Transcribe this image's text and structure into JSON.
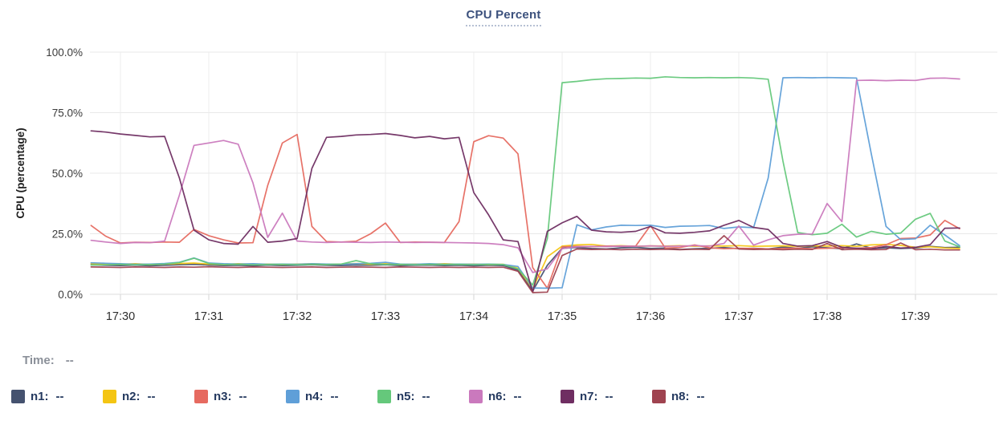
{
  "title": "CPU Percent",
  "time_row": {
    "label": "Time:",
    "value": "--"
  },
  "legend": {
    "items": [
      {
        "label": "n1:",
        "value": "--",
        "color": "#45526f"
      },
      {
        "label": "n2:",
        "value": "--",
        "color": "#f4c513"
      },
      {
        "label": "n3:",
        "value": "--",
        "color": "#e66a60"
      },
      {
        "label": "n4:",
        "value": "--",
        "color": "#5f9fd8"
      },
      {
        "label": "n5:",
        "value": "--",
        "color": "#65c87b"
      },
      {
        "label": "n6:",
        "value": "--",
        "color": "#ca79bd"
      },
      {
        "label": "n7:",
        "value": "--",
        "color": "#6f2e62"
      },
      {
        "label": "n8:",
        "value": "--",
        "color": "#9f4350"
      }
    ]
  },
  "chart_data": {
    "type": "line",
    "title": "CPU Percent",
    "xlabel": "",
    "ylabel": "CPU (percentage)",
    "ylim": [
      0,
      100
    ],
    "grid": true,
    "legend_position": "bottom",
    "y_ticks": [
      0,
      25,
      50,
      75,
      100
    ],
    "y_tick_labels": [
      "0.0%",
      "25.0%",
      "50.0%",
      "75.0%",
      "100.0%"
    ],
    "x_tick_labels": [
      "17:30",
      "17:31",
      "17:32",
      "17:33",
      "17:34",
      "17:35",
      "17:36",
      "17:37",
      "17:38",
      "17:39"
    ],
    "x_minutes_after_17_30": [
      -0.333,
      -0.167,
      0,
      0.167,
      0.333,
      0.5,
      0.667,
      0.833,
      1,
      1.167,
      1.333,
      1.5,
      1.667,
      1.833,
      2,
      2.167,
      2.333,
      2.5,
      2.667,
      2.833,
      3,
      3.167,
      3.333,
      3.5,
      3.667,
      3.833,
      4,
      4.167,
      4.333,
      4.5,
      4.667,
      4.833,
      5,
      5.167,
      5.333,
      5.5,
      5.667,
      5.833,
      6,
      6.167,
      6.333,
      6.5,
      6.667,
      6.833,
      7,
      7.167,
      7.333,
      7.5,
      7.667,
      7.833,
      8,
      8.167,
      8.333,
      8.5,
      8.667,
      8.833,
      9,
      9.167,
      9.333,
      9.5
    ],
    "series": [
      {
        "name": "n1",
        "color": "#45526f",
        "values": [
          12.2,
          12.0,
          11.9,
          12.1,
          11.8,
          12.0,
          12.2,
          12.4,
          12.1,
          11.9,
          12.0,
          11.8,
          12.1,
          11.9,
          12.0,
          12.2,
          12.0,
          11.9,
          12.1,
          12.0,
          12.2,
          11.9,
          12.0,
          12.1,
          11.9,
          12.0,
          11.8,
          12.0,
          11.9,
          10.0,
          1.4,
          12.0,
          19.0,
          19.3,
          18.9,
          18.7,
          19.2,
          19.4,
          18.9,
          19.1,
          18.5,
          18.8,
          19.0,
          19.3,
          18.8,
          19.0,
          18.7,
          19.5,
          19.0,
          19.6,
          19.2,
          18.8,
          20.8,
          19.0,
          19.2,
          18.9,
          19.1,
          19.8,
          19.3,
          19.4
        ]
      },
      {
        "name": "n2",
        "color": "#f4c513",
        "values": [
          12.7,
          12.5,
          12.4,
          12.6,
          12.3,
          12.5,
          12.7,
          12.9,
          12.5,
          12.3,
          12.6,
          12.4,
          12.5,
          12.3,
          12.5,
          12.6,
          12.4,
          12.5,
          12.7,
          12.4,
          12.6,
          12.3,
          12.5,
          12.4,
          12.6,
          12.4,
          12.5,
          12.3,
          12.4,
          10.8,
          2.3,
          15.5,
          19.9,
          20.4,
          20.6,
          19.9,
          20.1,
          19.8,
          20.0,
          19.9,
          20.1,
          19.8,
          20.0,
          19.9,
          20.1,
          19.8,
          19.9,
          20.0,
          19.8,
          20.0,
          19.9,
          20.1,
          19.8,
          20.4,
          20.6,
          20.2,
          19.4,
          19.6,
          19.1,
          18.9
        ]
      },
      {
        "name": "n3",
        "color": "#e66a60",
        "values": [
          28.4,
          24.0,
          21.2,
          21.5,
          21.4,
          21.6,
          21.5,
          26.8,
          24.2,
          22.5,
          21.2,
          21.3,
          45.0,
          62.5,
          66.0,
          28.0,
          21.8,
          21.6,
          21.9,
          25.0,
          29.4,
          21.4,
          21.6,
          21.5,
          21.4,
          30.0,
          63.0,
          65.5,
          64.5,
          58.0,
          11.0,
          2.5,
          19.6,
          19.8,
          19.7,
          19.9,
          19.8,
          19.9,
          28.4,
          19.1,
          19.3,
          20.4,
          19.2,
          18.8,
          19.0,
          18.9,
          18.7,
          18.9,
          19.1,
          18.8,
          19.0,
          19.2,
          19.0,
          19.3,
          20.5,
          23.0,
          23.2,
          24.5,
          30.5,
          27.1
        ]
      },
      {
        "name": "n4",
        "color": "#5f9fd8",
        "values": [
          13.0,
          12.8,
          12.6,
          12.4,
          12.5,
          12.7,
          13.2,
          15.0,
          12.9,
          12.6,
          12.5,
          12.6,
          12.4,
          12.5,
          12.4,
          12.6,
          12.5,
          12.4,
          12.6,
          12.8,
          13.2,
          12.5,
          12.4,
          12.6,
          12.4,
          12.5,
          12.4,
          12.5,
          12.3,
          11.5,
          2.6,
          2.5,
          2.7,
          28.7,
          26.6,
          27.8,
          28.5,
          28.4,
          28.5,
          27.6,
          28.1,
          28.2,
          28.4,
          27.2,
          27.8,
          27.5,
          48.0,
          89.4,
          89.5,
          89.4,
          89.5,
          89.4,
          89.3,
          58.0,
          28.0,
          22.6,
          22.9,
          28.5,
          24.5,
          20.1
        ]
      },
      {
        "name": "n5",
        "color": "#65c87b",
        "values": [
          12.1,
          12.2,
          12.4,
          12.2,
          12.3,
          12.5,
          13.1,
          14.9,
          12.7,
          12.3,
          12.4,
          12.2,
          12.3,
          12.4,
          12.2,
          12.4,
          12.3,
          12.5,
          13.9,
          12.6,
          12.3,
          12.4,
          12.2,
          12.4,
          12.3,
          12.4,
          12.2,
          12.4,
          12.3,
          10.5,
          3.8,
          23.0,
          87.4,
          87.9,
          88.6,
          89.0,
          89.1,
          89.3,
          89.2,
          89.8,
          89.5,
          89.4,
          89.5,
          89.4,
          89.5,
          89.3,
          88.8,
          55.0,
          25.5,
          24.6,
          25.2,
          28.9,
          23.6,
          26.0,
          24.8,
          25.3,
          31.0,
          33.4,
          22.0,
          19.6
        ]
      },
      {
        "name": "n6",
        "color": "#ca79bd",
        "values": [
          22.3,
          21.6,
          21.0,
          21.4,
          21.3,
          22.0,
          41.0,
          61.5,
          62.5,
          63.5,
          62.0,
          46.0,
          23.5,
          33.5,
          22.0,
          21.6,
          21.4,
          21.6,
          21.5,
          21.4,
          21.6,
          21.5,
          21.4,
          21.5,
          21.4,
          21.3,
          21.2,
          21.0,
          20.5,
          19.2,
          9.0,
          10.5,
          18.8,
          19.6,
          19.8,
          19.7,
          19.9,
          19.8,
          20.0,
          19.8,
          19.9,
          20.1,
          19.9,
          21.0,
          28.2,
          20.3,
          22.5,
          24.2,
          24.8,
          24.9,
          37.5,
          30.0,
          88.3,
          88.4,
          88.2,
          88.4,
          88.3,
          89.2,
          89.3,
          88.9
        ]
      },
      {
        "name": "n7",
        "color": "#6f2e62",
        "values": [
          67.5,
          67.0,
          66.2,
          65.6,
          65.0,
          65.2,
          48.0,
          26.5,
          22.5,
          21.0,
          20.7,
          28.0,
          21.5,
          22.0,
          23.0,
          52.0,
          64.8,
          65.2,
          65.8,
          66.0,
          66.4,
          65.6,
          64.6,
          65.2,
          64.2,
          64.8,
          42.0,
          32.8,
          22.5,
          21.8,
          0.9,
          26.0,
          29.5,
          32.2,
          26.5,
          25.8,
          25.6,
          26.0,
          28.0,
          25.4,
          25.2,
          25.6,
          26.2,
          28.5,
          30.5,
          27.6,
          26.8,
          21.0,
          19.9,
          20.1,
          21.8,
          19.4,
          19.0,
          18.7,
          19.8,
          19.1,
          19.4,
          20.5,
          27.3,
          27.4
        ]
      },
      {
        "name": "n8",
        "color": "#9f4350",
        "values": [
          11.3,
          11.2,
          11.1,
          11.3,
          11.2,
          11.1,
          11.3,
          11.2,
          11.4,
          11.2,
          11.1,
          11.3,
          11.2,
          11.1,
          11.2,
          11.3,
          11.1,
          11.2,
          11.3,
          11.2,
          11.1,
          11.3,
          11.2,
          11.1,
          11.2,
          11.1,
          11.2,
          11.1,
          11.2,
          9.5,
          0.7,
          0.9,
          16.0,
          18.7,
          18.5,
          18.6,
          18.4,
          18.6,
          18.5,
          18.6,
          18.4,
          18.6,
          18.5,
          24.2,
          18.7,
          18.5,
          18.6,
          18.4,
          18.6,
          18.5,
          21.0,
          18.4,
          18.6,
          18.4,
          18.5,
          21.2,
          18.4,
          18.6,
          18.3,
          18.3
        ]
      }
    ]
  }
}
